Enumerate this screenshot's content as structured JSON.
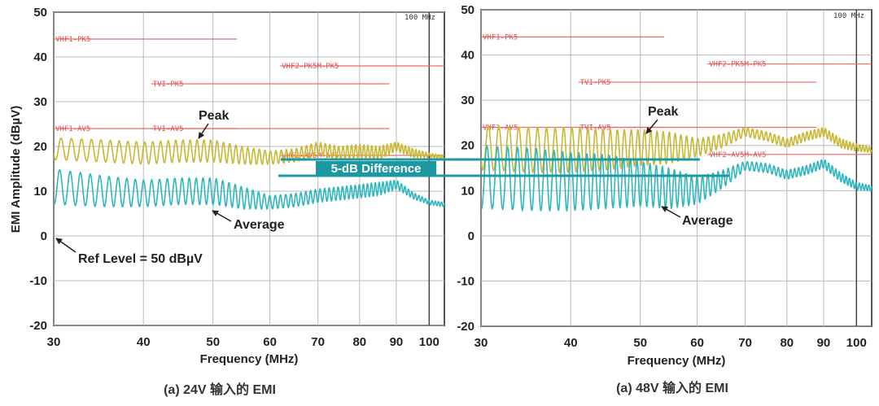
{
  "chart_data": [
    {
      "type": "line",
      "caption": "(a) 24V 输入的 EMI",
      "xlabel": "Frequency (MHz)",
      "ylabel": "EMI Amplitude (dBµV)",
      "xlim": [
        30,
        105
      ],
      "ylim": [
        -20,
        50
      ],
      "x_ticks": [
        30,
        40,
        50,
        60,
        70,
        80,
        90,
        100
      ],
      "y_ticks": [
        50,
        40,
        30,
        20,
        10,
        0,
        -10,
        -20
      ],
      "rbw_label": "100 MHz",
      "limit_lines": [
        {
          "label": "VHF1-PK5",
          "y": 44,
          "x_start": 30,
          "x_end": 54
        },
        {
          "label": "VHF2-PK5M-PK5",
          "y": 38,
          "x_start": 62,
          "x_end": 105
        },
        {
          "label": "TVI-PK5",
          "y": 34,
          "x_start": 41,
          "x_end": 88
        },
        {
          "label": "VHF1-AV5",
          "y": 24,
          "x_start": 30,
          "x_end": 54
        },
        {
          "label": "TVI-AV5",
          "y": 24,
          "x_start": 41,
          "x_end": 88
        },
        {
          "label": "VHF2-AV5M-AV5",
          "y": 18,
          "x_start": 62,
          "x_end": 105
        }
      ],
      "series": [
        {
          "name": "Peak",
          "color": "#c8b834",
          "x": [
            30,
            35,
            40,
            45,
            50,
            55,
            60,
            65,
            70,
            75,
            80,
            85,
            90,
            95,
            100,
            105
          ],
          "center": [
            19.5,
            19,
            18.5,
            19,
            19,
            18,
            17.5,
            18,
            19.5,
            18.5,
            19,
            18.5,
            20,
            18.5,
            18,
            17.5
          ],
          "amp": [
            2.5,
            2.5,
            2.5,
            2.5,
            2.5,
            2,
            1.5,
            1.5,
            1.5,
            1.5,
            1.5,
            1.5,
            1,
            1,
            0.5,
            0.5
          ]
        },
        {
          "name": "Average",
          "color": "#2fb6bf",
          "x": [
            30,
            35,
            40,
            45,
            50,
            55,
            60,
            65,
            70,
            75,
            80,
            85,
            90,
            95,
            100,
            105
          ],
          "center": [
            11,
            10,
            9.5,
            10,
            10,
            8.5,
            7.5,
            8,
            9,
            9.5,
            10,
            10.5,
            11.5,
            9,
            7.5,
            7
          ],
          "amp": [
            4,
            3.5,
            3,
            3,
            3,
            2.5,
            1.5,
            1.5,
            1.5,
            1.5,
            1.5,
            1.5,
            1,
            0.7,
            0.5,
            0.5
          ]
        }
      ],
      "annotations": [
        {
          "text": "Peak",
          "x": 51,
          "y": 25
        },
        {
          "text": "Average",
          "x": 56,
          "y": 2
        },
        {
          "text": "Ref Level = 50 dBµV",
          "x": 33,
          "y": -5
        }
      ]
    },
    {
      "type": "line",
      "caption": "(a) 48V 输入的 EMI",
      "xlabel": "Frequency (MHz)",
      "ylabel": "",
      "xlim": [
        30,
        105
      ],
      "ylim": [
        -20,
        50
      ],
      "x_ticks": [
        30,
        40,
        50,
        60,
        70,
        80,
        90,
        100
      ],
      "y_ticks": [
        50,
        40,
        30,
        20,
        10,
        0,
        -10,
        -20
      ],
      "rbw_label": "100 MHz",
      "limit_lines": [
        {
          "label": "VHF1-PK5",
          "y": 44,
          "x_start": 30,
          "x_end": 54
        },
        {
          "label": "VHF2-PK5M-PK5",
          "y": 38,
          "x_start": 62,
          "x_end": 105
        },
        {
          "label": "TVI-PK5",
          "y": 34,
          "x_start": 41,
          "x_end": 88
        },
        {
          "label": "VHF1-AV5",
          "y": 24,
          "x_start": 30,
          "x_end": 54
        },
        {
          "label": "TVI-AV5",
          "y": 24,
          "x_start": 41,
          "x_end": 88
        },
        {
          "label": "VHF2-AV5M-AV5",
          "y": 18,
          "x_start": 62,
          "x_end": 105
        }
      ],
      "series": [
        {
          "name": "Peak",
          "color": "#c8b834",
          "x": [
            30,
            35,
            40,
            45,
            50,
            55,
            60,
            65,
            70,
            75,
            80,
            85,
            90,
            95,
            100,
            105
          ],
          "center": [
            19.5,
            19,
            19,
            19,
            19.5,
            19.5,
            19.5,
            21,
            23,
            22,
            20.5,
            22,
            23,
            20.5,
            19.5,
            19
          ],
          "amp": [
            5,
            5,
            5,
            4.5,
            4,
            3.5,
            2,
            1.5,
            1,
            1,
            1,
            1,
            1,
            1,
            0.8,
            0.6
          ]
        },
        {
          "name": "Average",
          "color": "#2fb6bf",
          "x": [
            30,
            35,
            40,
            45,
            50,
            55,
            60,
            65,
            70,
            75,
            80,
            85,
            90,
            95,
            100,
            105
          ],
          "center": [
            13,
            12.5,
            12,
            12,
            11.5,
            10.5,
            10,
            12.5,
            15.5,
            15,
            13.5,
            14.5,
            16,
            13,
            11,
            10.5
          ],
          "amp": [
            7,
            7,
            6.5,
            6,
            5,
            4.5,
            3,
            2,
            1,
            1,
            1,
            1,
            1,
            1,
            0.8,
            0.6
          ]
        }
      ],
      "annotations": [
        {
          "text": "Peak",
          "x": 52,
          "y": 25
        },
        {
          "text": "Average",
          "x": 58,
          "y": 2
        }
      ]
    }
  ],
  "difference_label": "5-dB Difference"
}
